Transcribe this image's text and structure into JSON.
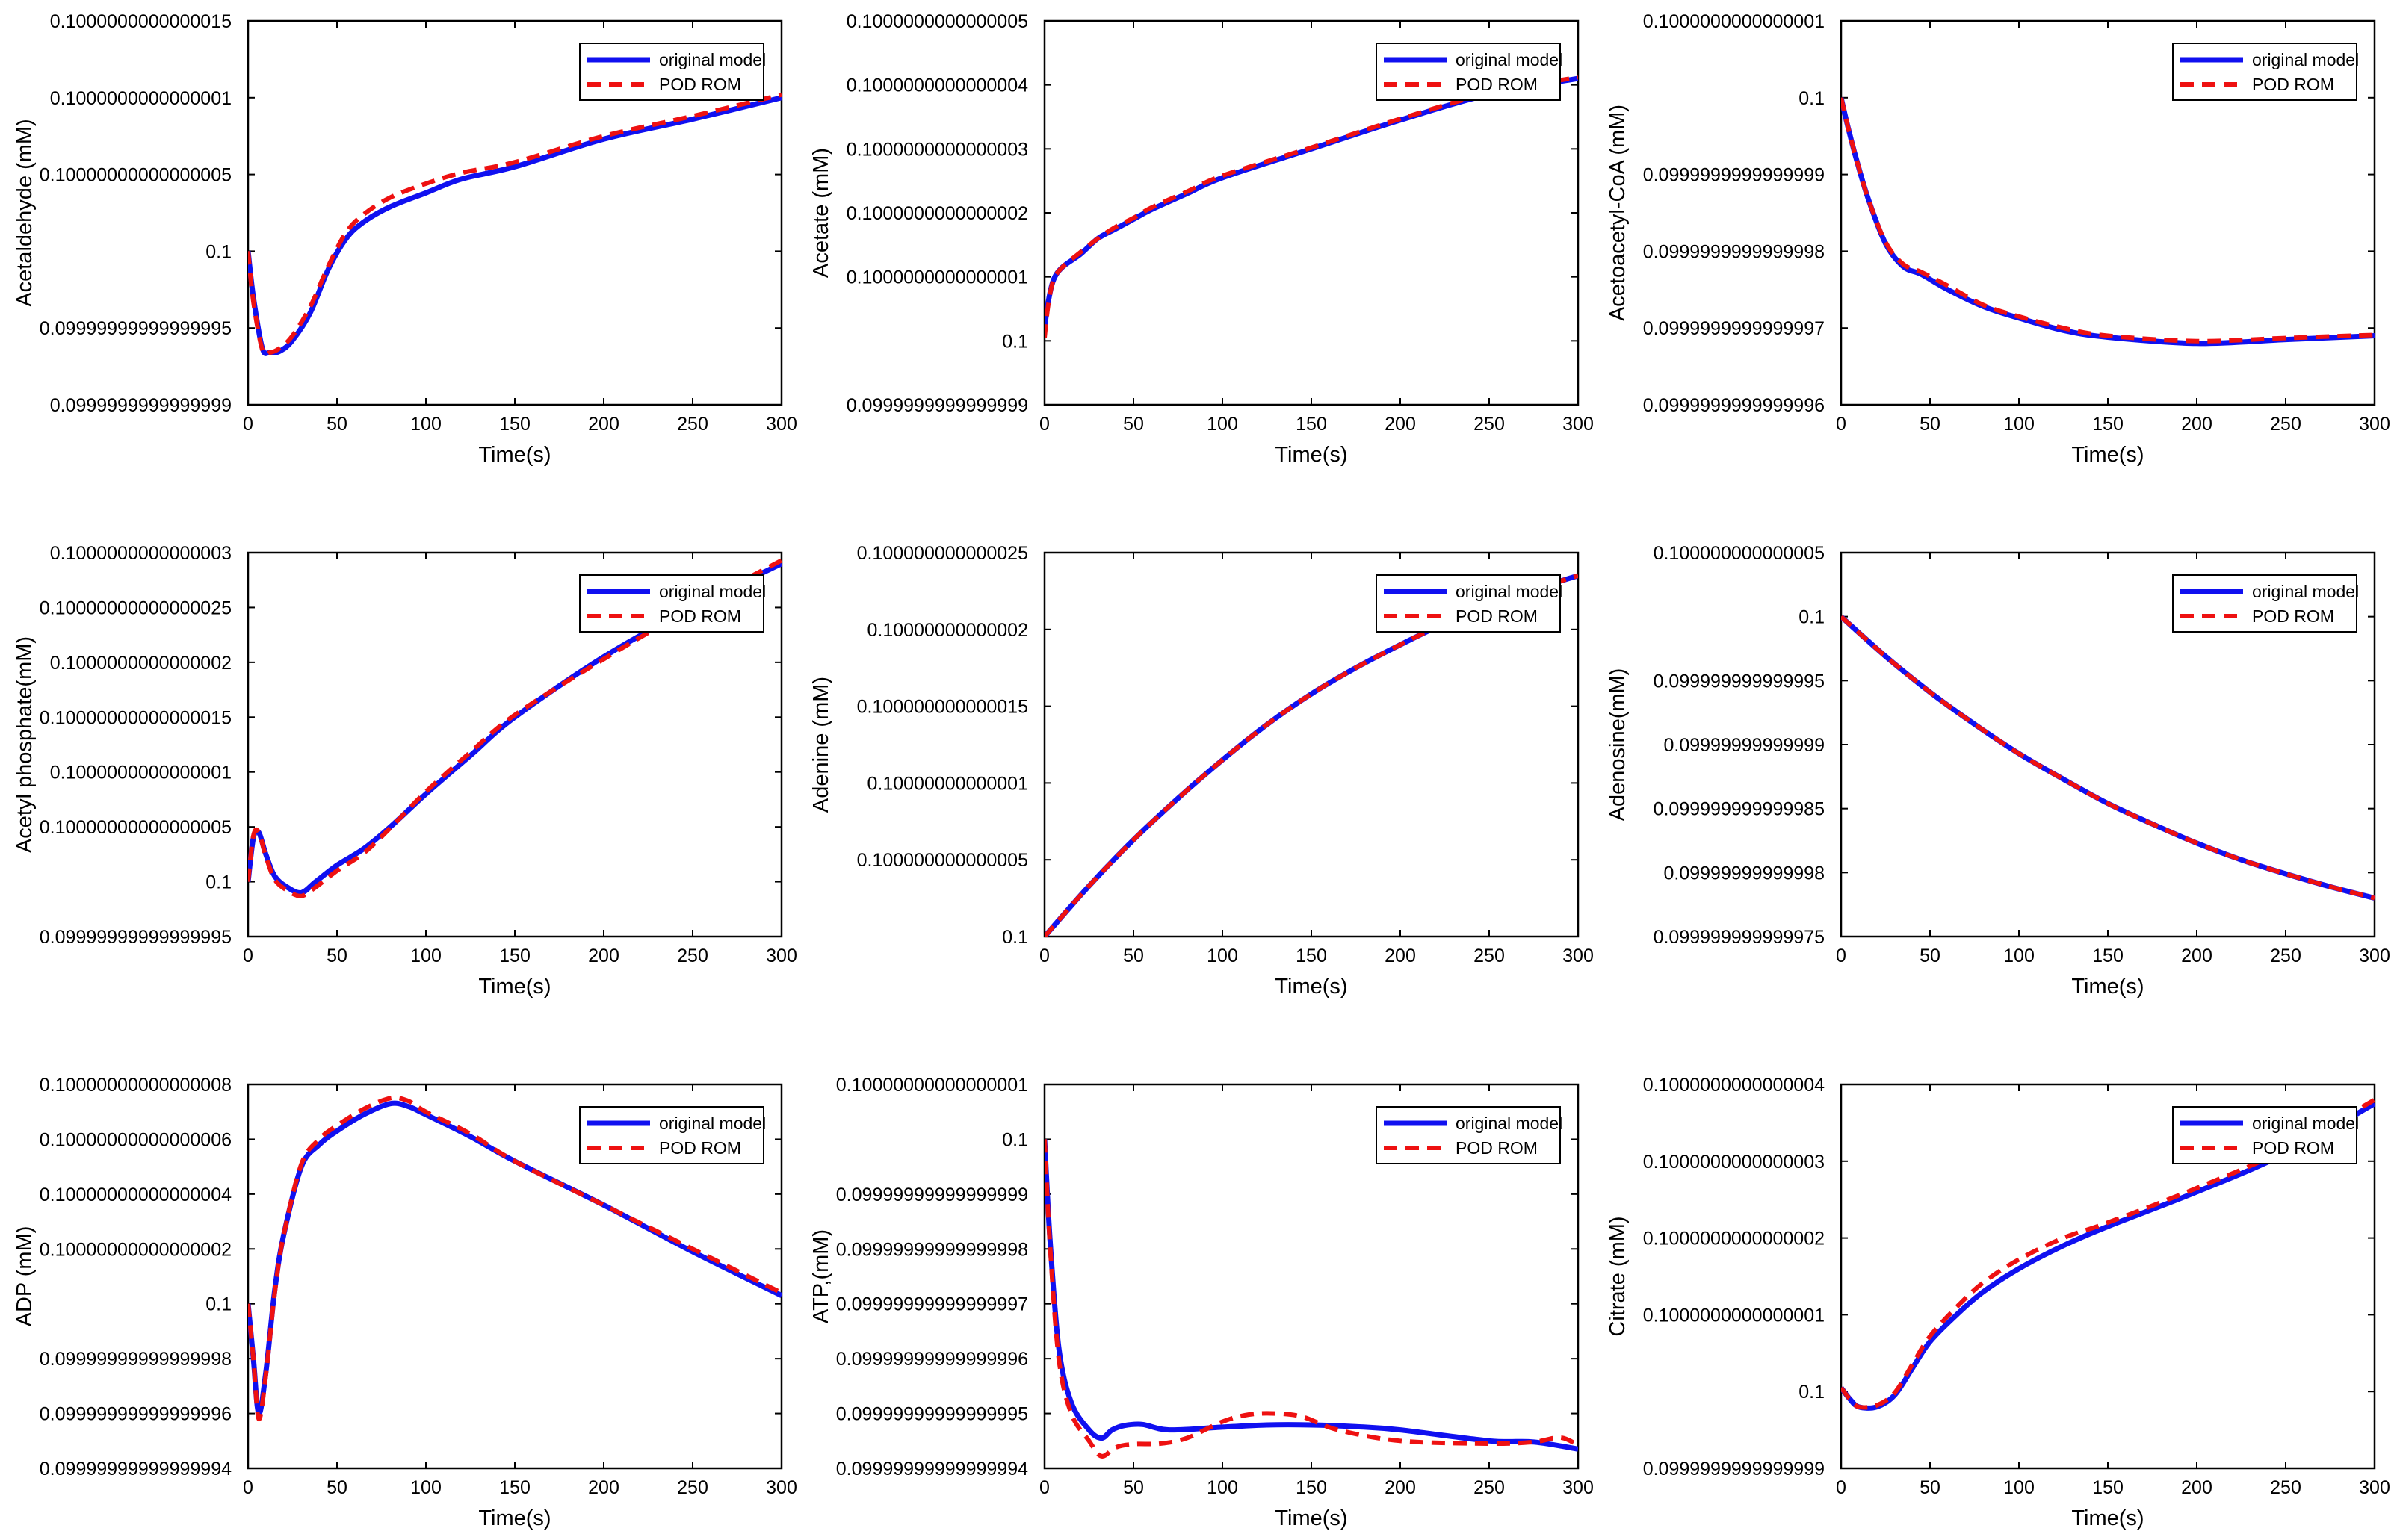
{
  "legend": [
    "original model",
    "POD ROM"
  ],
  "colors": {
    "original": "#1010f0",
    "rom": "#ee1111"
  },
  "chart_data": [
    {
      "type": "line",
      "ylabel": "Acetaldehyde (mM)",
      "xlabel": "Time(s)",
      "xlim": [
        0,
        300
      ],
      "xticks": [
        0,
        50,
        100,
        150,
        200,
        250,
        300
      ],
      "yticks": [
        "0.1000000000000015",
        "0.1000000000000001",
        "0.10000000000000005",
        "0.1",
        "0.09999999999999995",
        "0.0999999999999999"
      ],
      "ylim": [
        -10,
        15
      ],
      "legend_location": "top-right",
      "series": [
        {
          "name": "original model",
          "x": [
            0,
            3,
            8,
            12,
            18,
            25,
            35,
            45,
            55,
            65,
            80,
            100,
            120,
            150,
            200,
            250,
            300
          ],
          "y": [
            0,
            -3,
            -6.3,
            -6.6,
            -6.5,
            -5.8,
            -4,
            -1.2,
            0.8,
            1.9,
            2.9,
            3.8,
            4.7,
            5.5,
            7.3,
            8.6,
            10
          ]
        },
        {
          "name": "POD ROM",
          "x": [
            0,
            3,
            8,
            12,
            18,
            25,
            35,
            45,
            55,
            65,
            80,
            100,
            120,
            150,
            200,
            250,
            300
          ],
          "y": [
            0,
            -3.3,
            -6.4,
            -6.6,
            -6.3,
            -5.5,
            -3.6,
            -1.0,
            1.2,
            2.4,
            3.5,
            4.4,
            5.1,
            5.8,
            7.5,
            8.8,
            10.2
          ]
        }
      ]
    },
    {
      "type": "line",
      "ylabel": "Acetate (mM)",
      "xlabel": "Time(s)",
      "xlim": [
        0,
        300
      ],
      "xticks": [
        0,
        50,
        100,
        150,
        200,
        250,
        300
      ],
      "yticks": [
        "0.1000000000000005",
        "0.1000000000000004",
        "0.1000000000000003",
        "0.1000000000000002",
        "0.1000000000000001",
        "0.1",
        "0.0999999999999999"
      ],
      "ylim": [
        -1,
        5
      ],
      "legend_location": "top-right",
      "series": [
        {
          "name": "original model",
          "x": [
            0,
            2,
            5,
            10,
            20,
            30,
            40,
            50,
            60,
            80,
            100,
            150,
            200,
            250,
            300
          ],
          "y": [
            0.2,
            0.6,
            0.95,
            1.15,
            1.35,
            1.6,
            1.75,
            1.9,
            2.05,
            2.3,
            2.55,
            3.0,
            3.45,
            3.85,
            4.1
          ]
        },
        {
          "name": "POD ROM",
          "x": [
            0,
            2,
            5,
            10,
            20,
            30,
            40,
            50,
            60,
            80,
            100,
            150,
            200,
            250,
            300
          ],
          "y": [
            0.05,
            0.55,
            0.95,
            1.15,
            1.38,
            1.6,
            1.78,
            1.92,
            2.08,
            2.33,
            2.58,
            3.02,
            3.47,
            3.87,
            4.12
          ]
        }
      ]
    },
    {
      "type": "line",
      "ylabel": "Acetoacetyl-CoA (mM)",
      "xlabel": "Time(s)",
      "xlim": [
        0,
        300
      ],
      "xticks": [
        0,
        50,
        100,
        150,
        200,
        250,
        300
      ],
      "yticks": [
        "0.1000000000000001",
        "0.1",
        "0.0999999999999999",
        "0.0999999999999998",
        "0.0999999999999997",
        "0.0999999999999996"
      ],
      "ylim": [
        -4,
        1
      ],
      "legend_location": "top-right",
      "series": [
        {
          "name": "original model",
          "x": [
            0,
            3,
            8,
            15,
            25,
            35,
            45,
            60,
            80,
            100,
            125,
            150,
            200,
            250,
            300
          ],
          "y": [
            0,
            -0.3,
            -0.75,
            -1.3,
            -1.9,
            -2.2,
            -2.3,
            -2.5,
            -2.72,
            -2.87,
            -3.03,
            -3.12,
            -3.2,
            -3.15,
            -3.1
          ]
        },
        {
          "name": "POD ROM",
          "x": [
            0,
            3,
            8,
            15,
            25,
            35,
            45,
            60,
            80,
            100,
            125,
            150,
            200,
            250,
            300
          ],
          "y": [
            0,
            -0.3,
            -0.75,
            -1.3,
            -1.88,
            -2.17,
            -2.27,
            -2.45,
            -2.7,
            -2.85,
            -3.0,
            -3.1,
            -3.17,
            -3.13,
            -3.09
          ]
        }
      ]
    },
    {
      "type": "line",
      "ylabel": "Acetyl phosphate(mM)",
      "xlabel": "Time(s)",
      "xlim": [
        0,
        300
      ],
      "xticks": [
        0,
        50,
        100,
        150,
        200,
        250,
        300
      ],
      "yticks": [
        "0.1000000000000003",
        "0.10000000000000025",
        "0.1000000000000002",
        "0.10000000000000015",
        "0.1000000000000001",
        "0.10000000000000005",
        "0.1",
        "0.09999999999999995"
      ],
      "ylim": [
        -5,
        30
      ],
      "legend_location": "top-right",
      "series": [
        {
          "name": "original model",
          "x": [
            0,
            3,
            6,
            10,
            15,
            22,
            30,
            38,
            50,
            65,
            80,
            100,
            125,
            150,
            200,
            250,
            300
          ],
          "y": [
            0,
            4,
            4.5,
            2.5,
            0.5,
            -0.5,
            -1,
            0,
            1.5,
            3.0,
            5.0,
            8.0,
            11.5,
            15,
            20.5,
            25,
            29
          ]
        },
        {
          "name": "POD ROM",
          "x": [
            0,
            3,
            6,
            10,
            15,
            22,
            30,
            38,
            50,
            65,
            80,
            100,
            125,
            150,
            200,
            250,
            300
          ],
          "y": [
            0,
            4.2,
            4.5,
            2.3,
            0.2,
            -0.8,
            -1.3,
            -0.5,
            1.0,
            2.6,
            4.9,
            8.2,
            11.8,
            15.2,
            20.3,
            25,
            29.3
          ]
        }
      ]
    },
    {
      "type": "line",
      "ylabel": "Adenine (mM)",
      "xlabel": "Time(s)",
      "xlim": [
        0,
        300
      ],
      "xticks": [
        0,
        50,
        100,
        150,
        200,
        250,
        300
      ],
      "yticks": [
        "0.100000000000025",
        "0.10000000000002",
        "0.100000000000015",
        "0.10000000000001",
        "0.100000000000005",
        "0.1"
      ],
      "ylim": [
        0,
        25
      ],
      "legend_location": "top-right",
      "series": [
        {
          "name": "original model",
          "x": [
            0,
            25,
            50,
            75,
            100,
            125,
            150,
            175,
            200,
            225,
            250,
            275,
            300
          ],
          "y": [
            0,
            3.3,
            6.3,
            9.0,
            11.5,
            13.8,
            15.8,
            17.5,
            19.0,
            20.4,
            21.6,
            22.6,
            23.5
          ]
        },
        {
          "name": "POD ROM",
          "x": [
            0,
            25,
            50,
            75,
            100,
            125,
            150,
            175,
            200,
            225,
            250,
            275,
            300
          ],
          "y": [
            0,
            3.3,
            6.3,
            9.0,
            11.5,
            13.8,
            15.8,
            17.5,
            19.0,
            20.4,
            21.6,
            22.6,
            23.5
          ]
        }
      ]
    },
    {
      "type": "line",
      "ylabel": "Adenosine(mM)",
      "xlabel": "Time(s)",
      "xlim": [
        0,
        300
      ],
      "xticks": [
        0,
        50,
        100,
        150,
        200,
        250,
        300
      ],
      "yticks": [
        "0.100000000000005",
        "0.1",
        "0.099999999999995",
        "0.09999999999999",
        "0.099999999999985",
        "0.09999999999998",
        "0.099999999999975"
      ],
      "ylim": [
        -25,
        5
      ],
      "legend_location": "top-right",
      "series": [
        {
          "name": "original model",
          "x": [
            0,
            25,
            50,
            75,
            100,
            125,
            150,
            175,
            200,
            225,
            250,
            275,
            300
          ],
          "y": [
            0,
            -3.1,
            -5.9,
            -8.4,
            -10.7,
            -12.7,
            -14.6,
            -16.2,
            -17.7,
            -19.0,
            -20.1,
            -21.1,
            -22.0
          ]
        },
        {
          "name": "POD ROM",
          "x": [
            0,
            25,
            50,
            75,
            100,
            125,
            150,
            175,
            200,
            225,
            250,
            275,
            300
          ],
          "y": [
            0,
            -3.1,
            -5.9,
            -8.4,
            -10.7,
            -12.7,
            -14.6,
            -16.2,
            -17.7,
            -19.0,
            -20.1,
            -21.1,
            -22.0
          ]
        }
      ]
    },
    {
      "type": "line",
      "ylabel": "ADP (mM)",
      "xlabel": "Time(s)",
      "xlim": [
        0,
        300
      ],
      "xticks": [
        0,
        50,
        100,
        150,
        200,
        250,
        300
      ],
      "yticks": [
        "0.10000000000000008",
        "0.10000000000000006",
        "0.10000000000000004",
        "0.10000000000000002",
        "0.1",
        "0.09999999999999998",
        "0.09999999999999996",
        "0.09999999999999994"
      ],
      "ylim": [
        -6,
        8
      ],
      "legend_location": "top-right",
      "series": [
        {
          "name": "original model",
          "x": [
            0,
            3,
            6,
            10,
            15,
            20,
            30,
            40,
            50,
            65,
            80,
            90,
            100,
            125,
            150,
            200,
            250,
            300
          ],
          "y": [
            0,
            -2,
            -4,
            -2.5,
            0.5,
            2.5,
            5,
            5.8,
            6.3,
            6.9,
            7.3,
            7.2,
            6.9,
            6.1,
            5.2,
            3.6,
            1.9,
            0.3
          ]
        },
        {
          "name": "POD ROM",
          "x": [
            0,
            3,
            6,
            10,
            15,
            20,
            30,
            40,
            50,
            65,
            80,
            90,
            100,
            125,
            150,
            200,
            250,
            300
          ],
          "y": [
            0,
            -2,
            -4.2,
            -2.6,
            0.4,
            2.5,
            5.1,
            6.0,
            6.5,
            7.1,
            7.5,
            7.4,
            7.0,
            6.2,
            5.2,
            3.6,
            2.0,
            0.4
          ]
        }
      ]
    },
    {
      "type": "line",
      "ylabel": "ATP,(mM)",
      "xlabel": "Time(s)",
      "xlim": [
        0,
        300
      ],
      "xticks": [
        0,
        50,
        100,
        150,
        200,
        250,
        300
      ],
      "yticks": [
        "0.10000000000000001",
        "0.1",
        "0.09999999999999999",
        "0.09999999999999998",
        "0.09999999999999997",
        "0.09999999999999996",
        "0.09999999999999995",
        "0.09999999999999994"
      ],
      "ylim": [
        -6,
        1
      ],
      "legend_location": "top-right",
      "series": [
        {
          "name": "original model",
          "x": [
            0,
            3,
            8,
            15,
            25,
            32,
            38,
            45,
            55,
            70,
            100,
            125,
            150,
            175,
            200,
            250,
            275,
            300
          ],
          "y": [
            0,
            -1.8,
            -3.8,
            -4.8,
            -5.3,
            -5.45,
            -5.3,
            -5.22,
            -5.2,
            -5.3,
            -5.25,
            -5.21,
            -5.21,
            -5.24,
            -5.3,
            -5.5,
            -5.52,
            -5.65
          ]
        },
        {
          "name": "POD ROM",
          "x": [
            0,
            3,
            8,
            15,
            25,
            32,
            40,
            50,
            65,
            80,
            100,
            115,
            130,
            145,
            165,
            200,
            250,
            275,
            290,
            300
          ],
          "y": [
            0,
            -1.9,
            -4.0,
            -5.0,
            -5.5,
            -5.78,
            -5.62,
            -5.56,
            -5.55,
            -5.45,
            -5.15,
            -5.02,
            -5.0,
            -5.06,
            -5.3,
            -5.5,
            -5.55,
            -5.52,
            -5.44,
            -5.58
          ]
        }
      ]
    },
    {
      "type": "line",
      "ylabel": "Citrate (mM)",
      "xlabel": "Time(s)",
      "xlim": [
        0,
        300
      ],
      "xticks": [
        0,
        50,
        100,
        150,
        200,
        250,
        300
      ],
      "yticks": [
        "0.1000000000000004",
        "0.1000000000000003",
        "0.1000000000000002",
        "0.1000000000000001",
        "0.1",
        "0.0999999999999999"
      ],
      "ylim": [
        -1,
        4
      ],
      "legend_location": "top-right",
      "series": [
        {
          "name": "original model",
          "x": [
            0,
            5,
            10,
            20,
            30,
            40,
            50,
            65,
            80,
            100,
            125,
            150,
            200,
            250,
            300
          ],
          "y": [
            0.05,
            -0.1,
            -0.2,
            -0.2,
            -0.05,
            0.3,
            0.65,
            1.0,
            1.3,
            1.6,
            1.9,
            2.15,
            2.6,
            3.1,
            3.75
          ]
        },
        {
          "name": "POD ROM",
          "x": [
            0,
            5,
            10,
            20,
            30,
            40,
            50,
            65,
            80,
            100,
            125,
            150,
            200,
            250,
            300
          ],
          "y": [
            0.05,
            -0.1,
            -0.2,
            -0.18,
            -0.02,
            0.35,
            0.72,
            1.1,
            1.42,
            1.72,
            2.0,
            2.2,
            2.65,
            3.15,
            3.8
          ]
        }
      ]
    }
  ]
}
